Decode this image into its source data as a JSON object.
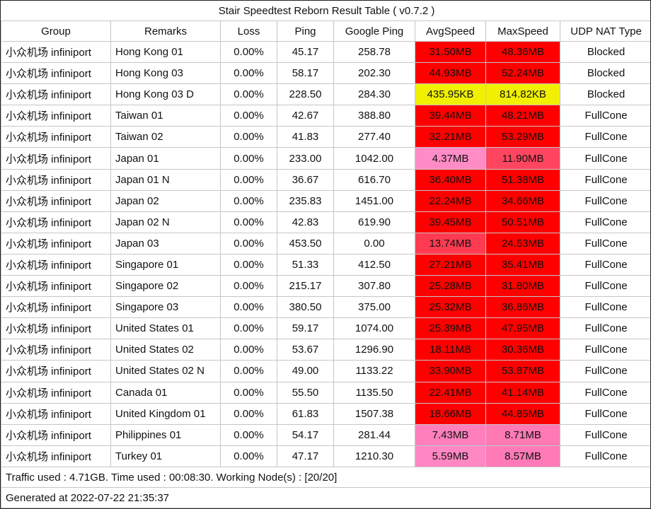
{
  "title": "Stair Speedtest Reborn Result Table ( v0.7.2 )",
  "columns": [
    {
      "key": "group",
      "label": "Group"
    },
    {
      "key": "remarks",
      "label": "Remarks"
    },
    {
      "key": "loss",
      "label": "Loss"
    },
    {
      "key": "ping",
      "label": "Ping"
    },
    {
      "key": "google-ping",
      "label": "Google Ping"
    },
    {
      "key": "avg-speed",
      "label": "AvgSpeed"
    },
    {
      "key": "max-speed",
      "label": "MaxSpeed"
    },
    {
      "key": "udp-nat-type",
      "label": "UDP NAT Type"
    }
  ],
  "colors": {
    "grid_line": "#c6c6c6",
    "outer_border": "#212121",
    "speed_red": "#FF0000",
    "speed_yellow": "#F0F000",
    "speed_pink": "#FF8CC6",
    "speed_rose": "#FF4560"
  },
  "rows": [
    {
      "group": "小众机场 infiniport",
      "remarks": "Hong Kong 01",
      "loss": "0.00%",
      "ping": "45.17",
      "google_ping": "258.78",
      "avg_speed": "31.50MB",
      "avg_speed_color": "#FF0000",
      "max_speed": "48.36MB",
      "max_speed_color": "#FF0000",
      "udp_nat_type": "Blocked"
    },
    {
      "group": "小众机场 infiniport",
      "remarks": "Hong Kong 03",
      "loss": "0.00%",
      "ping": "58.17",
      "google_ping": "202.30",
      "avg_speed": "44.93MB",
      "avg_speed_color": "#FF0000",
      "max_speed": "52.24MB",
      "max_speed_color": "#FF0000",
      "udp_nat_type": "Blocked"
    },
    {
      "group": "小众机场 infiniport",
      "remarks": "Hong Kong 03 D",
      "loss": "0.00%",
      "ping": "228.50",
      "google_ping": "284.30",
      "avg_speed": "435.95KB",
      "avg_speed_color": "#F0F000",
      "max_speed": "814.82KB",
      "max_speed_color": "#F0F000",
      "udp_nat_type": "Blocked"
    },
    {
      "group": "小众机场 infiniport",
      "remarks": "Taiwan 01",
      "loss": "0.00%",
      "ping": "42.67",
      "google_ping": "388.80",
      "avg_speed": "39.44MB",
      "avg_speed_color": "#FF0000",
      "max_speed": "48.21MB",
      "max_speed_color": "#FF0000",
      "udp_nat_type": "FullCone"
    },
    {
      "group": "小众机场 infiniport",
      "remarks": "Taiwan 02",
      "loss": "0.00%",
      "ping": "41.83",
      "google_ping": "277.40",
      "avg_speed": "32.21MB",
      "avg_speed_color": "#FF0000",
      "max_speed": "53.29MB",
      "max_speed_color": "#FF0000",
      "udp_nat_type": "FullCone"
    },
    {
      "group": "小众机场 infiniport",
      "remarks": "Japan 01",
      "loss": "0.00%",
      "ping": "233.00",
      "google_ping": "1042.00",
      "avg_speed": "4.37MB",
      "avg_speed_color": "#FF8CC6",
      "max_speed": "11.90MB",
      "max_speed_color": "#FF4560",
      "udp_nat_type": "FullCone"
    },
    {
      "group": "小众机场 infiniport",
      "remarks": "Japan 01 N",
      "loss": "0.00%",
      "ping": "36.67",
      "google_ping": "616.70",
      "avg_speed": "36.40MB",
      "avg_speed_color": "#FF0000",
      "max_speed": "51.38MB",
      "max_speed_color": "#FF0000",
      "udp_nat_type": "FullCone"
    },
    {
      "group": "小众机场 infiniport",
      "remarks": "Japan 02",
      "loss": "0.00%",
      "ping": "235.83",
      "google_ping": "1451.00",
      "avg_speed": "22.24MB",
      "avg_speed_color": "#FF0000",
      "max_speed": "34.66MB",
      "max_speed_color": "#FF0000",
      "udp_nat_type": "FullCone"
    },
    {
      "group": "小众机场 infiniport",
      "remarks": "Japan 02 N",
      "loss": "0.00%",
      "ping": "42.83",
      "google_ping": "619.90",
      "avg_speed": "39.45MB",
      "avg_speed_color": "#FF0000",
      "max_speed": "50.51MB",
      "max_speed_color": "#FF0000",
      "udp_nat_type": "FullCone"
    },
    {
      "group": "小众机场 infiniport",
      "remarks": "Japan 03",
      "loss": "0.00%",
      "ping": "453.50",
      "google_ping": "0.00",
      "avg_speed": "13.74MB",
      "avg_speed_color": "#FF3B52",
      "max_speed": "24.53MB",
      "max_speed_color": "#FF0000",
      "udp_nat_type": "FullCone"
    },
    {
      "group": "小众机场 infiniport",
      "remarks": "Singapore 01",
      "loss": "0.00%",
      "ping": "51.33",
      "google_ping": "412.50",
      "avg_speed": "27.21MB",
      "avg_speed_color": "#FF0000",
      "max_speed": "35.41MB",
      "max_speed_color": "#FF0000",
      "udp_nat_type": "FullCone"
    },
    {
      "group": "小众机场 infiniport",
      "remarks": "Singapore 02",
      "loss": "0.00%",
      "ping": "215.17",
      "google_ping": "307.80",
      "avg_speed": "25.28MB",
      "avg_speed_color": "#FF0000",
      "max_speed": "31.80MB",
      "max_speed_color": "#FF0000",
      "udp_nat_type": "FullCone"
    },
    {
      "group": "小众机场 infiniport",
      "remarks": "Singapore 03",
      "loss": "0.00%",
      "ping": "380.50",
      "google_ping": "375.00",
      "avg_speed": "25.32MB",
      "avg_speed_color": "#FF0000",
      "max_speed": "36.86MB",
      "max_speed_color": "#FF0000",
      "udp_nat_type": "FullCone"
    },
    {
      "group": "小众机场 infiniport",
      "remarks": "United States 01",
      "loss": "0.00%",
      "ping": "59.17",
      "google_ping": "1074.00",
      "avg_speed": "25.39MB",
      "avg_speed_color": "#FF0000",
      "max_speed": "47.95MB",
      "max_speed_color": "#FF0000",
      "udp_nat_type": "FullCone"
    },
    {
      "group": "小众机场 infiniport",
      "remarks": "United States 02",
      "loss": "0.00%",
      "ping": "53.67",
      "google_ping": "1296.90",
      "avg_speed": "18.11MB",
      "avg_speed_color": "#FF0000",
      "max_speed": "30.36MB",
      "max_speed_color": "#FF0000",
      "udp_nat_type": "FullCone"
    },
    {
      "group": "小众机场 infiniport",
      "remarks": "United States 02 N",
      "loss": "0.00%",
      "ping": "49.00",
      "google_ping": "1133.22",
      "avg_speed": "33.90MB",
      "avg_speed_color": "#FF0000",
      "max_speed": "53.87MB",
      "max_speed_color": "#FF0000",
      "udp_nat_type": "FullCone"
    },
    {
      "group": "小众机场 infiniport",
      "remarks": "Canada 01",
      "loss": "0.00%",
      "ping": "55.50",
      "google_ping": "1135.50",
      "avg_speed": "22.41MB",
      "avg_speed_color": "#FF0000",
      "max_speed": "41.14MB",
      "max_speed_color": "#FF0000",
      "udp_nat_type": "FullCone"
    },
    {
      "group": "小众机场 infiniport",
      "remarks": "United Kingdom 01",
      "loss": "0.00%",
      "ping": "61.83",
      "google_ping": "1507.38",
      "avg_speed": "18.66MB",
      "avg_speed_color": "#FF0000",
      "max_speed": "44.85MB",
      "max_speed_color": "#FF0000",
      "udp_nat_type": "FullCone"
    },
    {
      "group": "小众机场 infiniport",
      "remarks": "Philippines 01",
      "loss": "0.00%",
      "ping": "54.17",
      "google_ping": "281.44",
      "avg_speed": "7.43MB",
      "avg_speed_color": "#FF7FBC",
      "max_speed": "8.71MB",
      "max_speed_color": "#FF79B5",
      "udp_nat_type": "FullCone"
    },
    {
      "group": "小众机场 infiniport",
      "remarks": "Turkey 01",
      "loss": "0.00%",
      "ping": "47.17",
      "google_ping": "1210.30",
      "avg_speed": "5.59MB",
      "avg_speed_color": "#FF87C3",
      "max_speed": "8.57MB",
      "max_speed_color": "#FF7AB6",
      "udp_nat_type": "FullCone"
    }
  ],
  "footer": {
    "summary": "Traffic used : 4.71GB. Time used : 00:08:30. Working Node(s) : [20/20]",
    "generated": "Generated at 2022-07-22 21:35:37"
  }
}
